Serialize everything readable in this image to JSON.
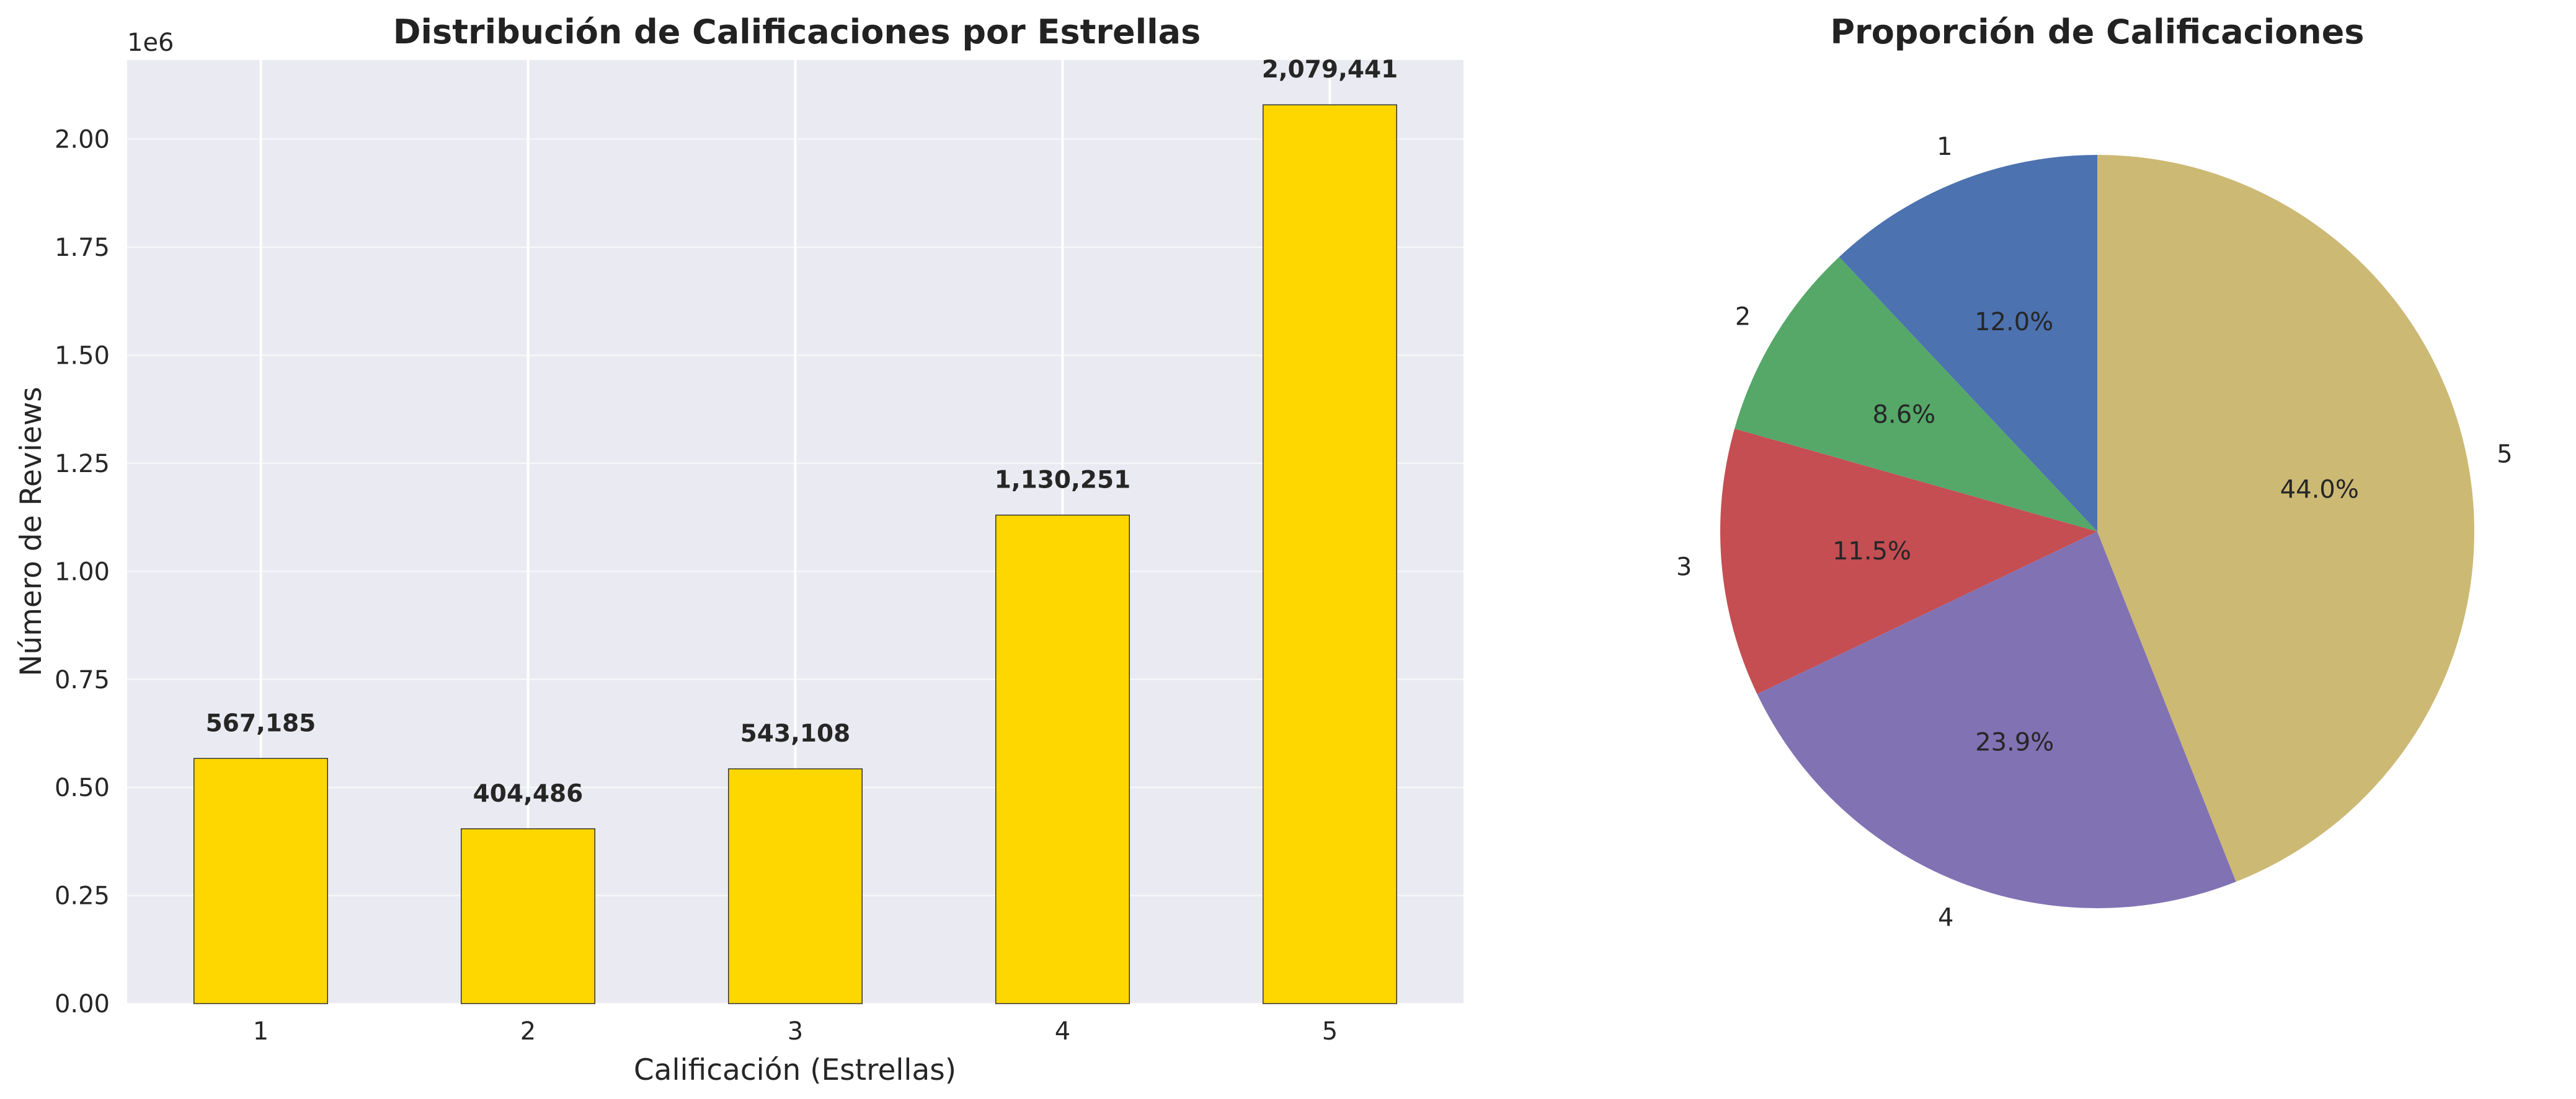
{
  "chart_data": [
    {
      "type": "bar",
      "title": "Distribución de Calificaciones por Estrellas",
      "xlabel": "Calificación (Estrellas)",
      "ylabel": "Número de Reviews",
      "y_offset_label": "1e6",
      "categories": [
        "1",
        "2",
        "3",
        "4",
        "5"
      ],
      "values": [
        567185,
        404486,
        543108,
        1130251,
        2079441
      ],
      "value_labels": [
        "567,185",
        "404,486",
        "543,108",
        "1,130,251",
        "2,079,441"
      ],
      "ylim": [
        0,
        2183000.0
      ],
      "yticks": [
        0,
        250000,
        500000,
        750000,
        1000000,
        1250000,
        1500000,
        1750000,
        2000000
      ],
      "ytick_labels": [
        "0.00",
        "0.25",
        "0.50",
        "0.75",
        "1.00",
        "1.25",
        "1.50",
        "1.75",
        "2.00"
      ],
      "grid": true,
      "bar_color": "#FFD700",
      "background": "#EAEAF2"
    },
    {
      "type": "pie",
      "title": "Proporción de Calificaciones",
      "labels": [
        "1",
        "2",
        "3",
        "4",
        "5"
      ],
      "values": [
        12.0,
        8.6,
        11.5,
        23.9,
        44.0
      ],
      "pct_labels": [
        "12.0%",
        "8.6%",
        "11.5%",
        "23.9%",
        "44.0%"
      ],
      "colors": [
        "#4C72B0",
        "#55A868",
        "#C44E52",
        "#8172B3",
        "#CCB974"
      ],
      "start_angle": 90,
      "direction": "counterclockwise"
    }
  ]
}
